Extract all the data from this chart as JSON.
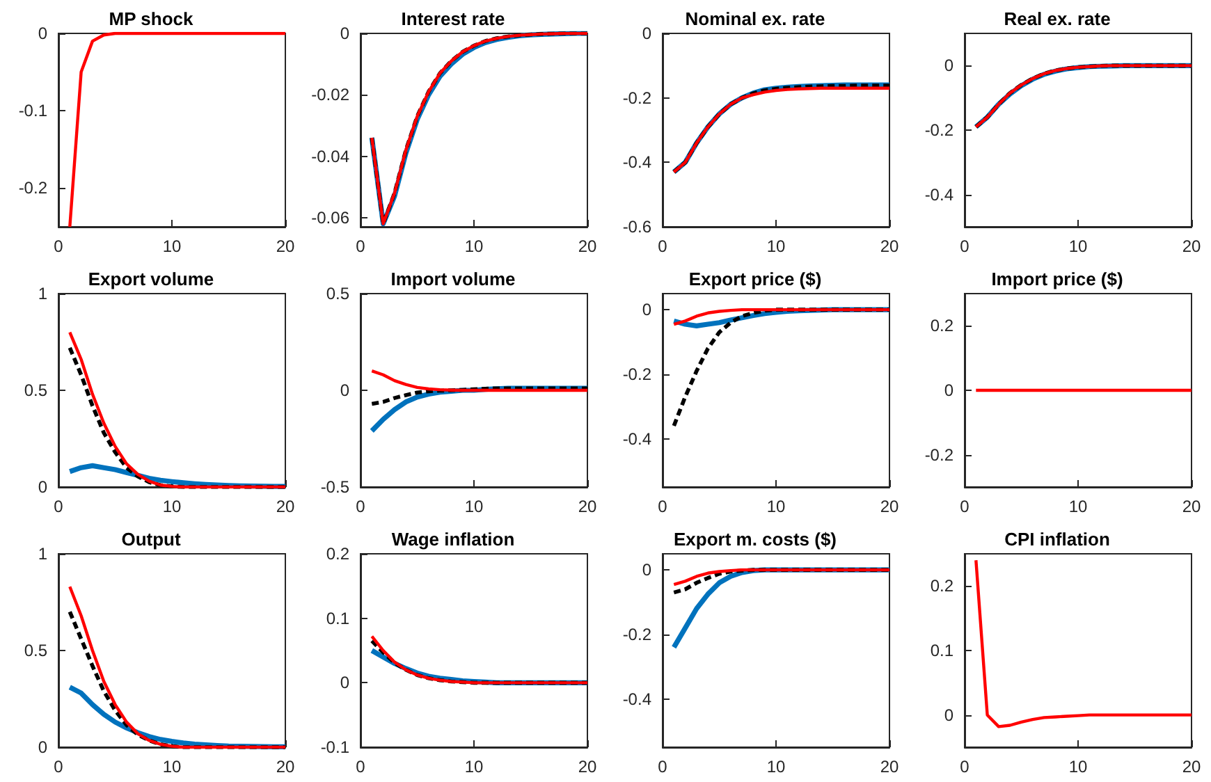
{
  "chart_data": [
    {
      "type": "line",
      "title": "MP shock",
      "x": [
        1,
        2,
        3,
        4,
        5,
        6,
        7,
        8,
        9,
        10,
        11,
        12,
        13,
        14,
        15,
        16,
        17,
        18,
        19,
        20
      ],
      "xlim": [
        0,
        20
      ],
      "xticks": [
        0,
        10,
        20
      ],
      "ylim": [
        -0.25,
        0
      ],
      "yticks": [
        -0.2,
        -0.1,
        0
      ],
      "grid": false,
      "series": [
        {
          "color": "#ff0000",
          "line_style": "solid",
          "values": [
            -0.25,
            -0.05,
            -0.01,
            -0.002,
            0,
            0,
            0,
            0,
            0,
            0,
            0,
            0,
            0,
            0,
            0,
            0,
            0,
            0,
            0,
            0
          ]
        }
      ]
    },
    {
      "type": "line",
      "title": "Interest rate",
      "x": [
        1,
        2,
        3,
        4,
        5,
        6,
        7,
        8,
        9,
        10,
        11,
        12,
        13,
        14,
        15,
        16,
        17,
        18,
        19,
        20
      ],
      "xlim": [
        0,
        20
      ],
      "xticks": [
        0,
        10,
        20
      ],
      "ylim": [
        -0.063,
        0
      ],
      "yticks": [
        -0.06,
        -0.04,
        -0.02,
        0
      ],
      "grid": false,
      "series": [
        {
          "color": "#0072bd",
          "line_style": "solid",
          "values": [
            -0.034,
            -0.062,
            -0.053,
            -0.039,
            -0.028,
            -0.02,
            -0.014,
            -0.01,
            -0.0068,
            -0.0046,
            -0.003,
            -0.002,
            -0.0013,
            -0.0008,
            -0.0005,
            -0.0003,
            -0.0002,
            -0.0001,
            0,
            0
          ]
        },
        {
          "color": "#000000",
          "line_style": "dashed",
          "values": [
            -0.034,
            -0.062,
            -0.052,
            -0.038,
            -0.027,
            -0.019,
            -0.013,
            -0.009,
            -0.006,
            -0.004,
            -0.0025,
            -0.0016,
            -0.001,
            -0.0006,
            -0.0004,
            -0.0002,
            -0.0001,
            0,
            0,
            0
          ]
        },
        {
          "color": "#ff0000",
          "line_style": "solid",
          "values": [
            -0.034,
            -0.062,
            -0.052,
            -0.038,
            -0.027,
            -0.019,
            -0.013,
            -0.009,
            -0.006,
            -0.004,
            -0.0025,
            -0.0016,
            -0.001,
            -0.0006,
            -0.0004,
            -0.0002,
            -0.0001,
            0,
            0,
            0
          ]
        }
      ]
    },
    {
      "type": "line",
      "title": "Nominal ex. rate",
      "x": [
        1,
        2,
        3,
        4,
        5,
        6,
        7,
        8,
        9,
        10,
        11,
        12,
        13,
        14,
        15,
        16,
        17,
        18,
        19,
        20
      ],
      "xlim": [
        0,
        20
      ],
      "xticks": [
        0,
        10,
        20
      ],
      "ylim": [
        -0.6,
        0
      ],
      "yticks": [
        -0.6,
        -0.4,
        -0.2,
        0
      ],
      "grid": false,
      "series": [
        {
          "color": "#0072bd",
          "line_style": "solid",
          "values": [
            -0.43,
            -0.4,
            -0.34,
            -0.29,
            -0.25,
            -0.22,
            -0.2,
            -0.185,
            -0.175,
            -0.17,
            -0.167,
            -0.165,
            -0.163,
            -0.162,
            -0.161,
            -0.16,
            -0.16,
            -0.16,
            -0.16,
            -0.16
          ]
        },
        {
          "color": "#000000",
          "line_style": "dashed",
          "values": [
            -0.43,
            -0.4,
            -0.34,
            -0.29,
            -0.25,
            -0.22,
            -0.2,
            -0.186,
            -0.177,
            -0.172,
            -0.169,
            -0.167,
            -0.165,
            -0.164,
            -0.163,
            -0.163,
            -0.162,
            -0.162,
            -0.162,
            -0.162
          ]
        },
        {
          "color": "#ff0000",
          "line_style": "solid",
          "values": [
            -0.43,
            -0.4,
            -0.34,
            -0.29,
            -0.25,
            -0.22,
            -0.2,
            -0.19,
            -0.182,
            -0.177,
            -0.174,
            -0.172,
            -0.171,
            -0.17,
            -0.17,
            -0.17,
            -0.17,
            -0.17,
            -0.17,
            -0.17
          ]
        }
      ]
    },
    {
      "type": "line",
      "title": "Real ex. rate",
      "x": [
        1,
        2,
        3,
        4,
        5,
        6,
        7,
        8,
        9,
        10,
        11,
        12,
        13,
        14,
        15,
        16,
        17,
        18,
        19,
        20
      ],
      "xlim": [
        0,
        20
      ],
      "xticks": [
        0,
        10,
        20
      ],
      "ylim": [
        -0.5,
        0.1
      ],
      "yticks": [
        -0.4,
        -0.2,
        0
      ],
      "grid": false,
      "series": [
        {
          "color": "#0072bd",
          "line_style": "solid",
          "values": [
            -0.19,
            -0.16,
            -0.12,
            -0.088,
            -0.062,
            -0.042,
            -0.027,
            -0.017,
            -0.01,
            -0.006,
            -0.003,
            -0.002,
            -0.001,
            0,
            0,
            0,
            0,
            0,
            0,
            0
          ]
        },
        {
          "color": "#000000",
          "line_style": "dashed",
          "values": [
            -0.19,
            -0.16,
            -0.12,
            -0.085,
            -0.06,
            -0.04,
            -0.025,
            -0.015,
            -0.009,
            -0.005,
            -0.003,
            -0.001,
            0,
            0,
            0,
            0,
            0,
            0,
            0,
            0
          ]
        },
        {
          "color": "#ff0000",
          "line_style": "solid",
          "values": [
            -0.19,
            -0.16,
            -0.12,
            -0.085,
            -0.06,
            -0.04,
            -0.025,
            -0.015,
            -0.009,
            -0.005,
            -0.003,
            -0.001,
            0,
            0,
            0,
            0,
            0,
            0,
            0,
            0
          ]
        }
      ]
    },
    {
      "type": "line",
      "title": "Export volume",
      "x": [
        1,
        2,
        3,
        4,
        5,
        6,
        7,
        8,
        9,
        10,
        11,
        12,
        13,
        14,
        15,
        16,
        17,
        18,
        19,
        20
      ],
      "xlim": [
        0,
        20
      ],
      "xticks": [
        0,
        10,
        20
      ],
      "ylim": [
        0,
        1
      ],
      "yticks": [
        0,
        0.5,
        1
      ],
      "grid": false,
      "series": [
        {
          "color": "#0072bd",
          "line_style": "solid",
          "values": [
            0.08,
            0.1,
            0.11,
            0.1,
            0.09,
            0.075,
            0.06,
            0.045,
            0.035,
            0.028,
            0.022,
            0.017,
            0.013,
            0.01,
            0.008,
            0.006,
            0.005,
            0.004,
            0.003,
            0.003
          ]
        },
        {
          "color": "#000000",
          "line_style": "dashed",
          "values": [
            0.72,
            0.58,
            0.42,
            0.28,
            0.18,
            0.1,
            0.055,
            0.025,
            0.01,
            0.003,
            0,
            0,
            0,
            0,
            0,
            0,
            0,
            0,
            0,
            0
          ]
        },
        {
          "color": "#ff0000",
          "line_style": "solid",
          "values": [
            0.8,
            0.66,
            0.48,
            0.33,
            0.21,
            0.12,
            0.065,
            0.03,
            0.01,
            0.003,
            0,
            0,
            0,
            0,
            0,
            0,
            0,
            0,
            0,
            0
          ]
        }
      ]
    },
    {
      "type": "line",
      "title": "Import volume",
      "x": [
        1,
        2,
        3,
        4,
        5,
        6,
        7,
        8,
        9,
        10,
        11,
        12,
        13,
        14,
        15,
        16,
        17,
        18,
        19,
        20
      ],
      "xlim": [
        0,
        20
      ],
      "xticks": [
        0,
        10,
        20
      ],
      "ylim": [
        -0.5,
        0.5
      ],
      "yticks": [
        -0.5,
        0,
        0.5
      ],
      "grid": false,
      "series": [
        {
          "color": "#0072bd",
          "line_style": "solid",
          "values": [
            -0.21,
            -0.15,
            -0.1,
            -0.06,
            -0.035,
            -0.02,
            -0.01,
            -0.005,
            0,
            0,
            0.005,
            0.008,
            0.01,
            0.01,
            0.01,
            0.01,
            0.01,
            0.01,
            0.01,
            0.01
          ]
        },
        {
          "color": "#000000",
          "line_style": "dashed",
          "values": [
            -0.07,
            -0.06,
            -0.04,
            -0.025,
            -0.012,
            -0.005,
            -0.002,
            0,
            0.002,
            0.005,
            0.008,
            0.01,
            0.01,
            0.01,
            0.01,
            0.01,
            0.01,
            0.01,
            0.01,
            0.01
          ]
        },
        {
          "color": "#ff0000",
          "line_style": "solid",
          "values": [
            0.1,
            0.08,
            0.05,
            0.03,
            0.015,
            0.007,
            0.003,
            0.001,
            0,
            0,
            0,
            0,
            0,
            0,
            0,
            0,
            0,
            0,
            0,
            0
          ]
        }
      ]
    },
    {
      "type": "line",
      "title": "Export price ($)",
      "x": [
        1,
        2,
        3,
        4,
        5,
        6,
        7,
        8,
        9,
        10,
        11,
        12,
        13,
        14,
        15,
        16,
        17,
        18,
        19,
        20
      ],
      "xlim": [
        0,
        20
      ],
      "xticks": [
        0,
        10,
        20
      ],
      "ylim": [
        -0.55,
        0.05
      ],
      "yticks": [
        -0.4,
        -0.2,
        0
      ],
      "grid": false,
      "series": [
        {
          "color": "#0072bd",
          "line_style": "solid",
          "values": [
            -0.035,
            -0.045,
            -0.05,
            -0.045,
            -0.04,
            -0.032,
            -0.025,
            -0.018,
            -0.012,
            -0.008,
            -0.005,
            -0.003,
            -0.002,
            -0.001,
            0,
            0,
            0,
            0,
            0,
            0
          ]
        },
        {
          "color": "#000000",
          "line_style": "dashed",
          "values": [
            -0.36,
            -0.27,
            -0.19,
            -0.12,
            -0.07,
            -0.04,
            -0.02,
            -0.01,
            -0.003,
            0,
            0,
            0,
            0,
            0,
            0,
            0,
            0,
            0,
            0,
            0
          ]
        },
        {
          "color": "#ff0000",
          "line_style": "solid",
          "values": [
            -0.045,
            -0.035,
            -0.02,
            -0.01,
            -0.005,
            -0.002,
            0,
            0,
            0,
            0,
            0,
            0,
            0,
            0,
            0,
            0,
            0,
            0,
            0,
            0
          ]
        }
      ]
    },
    {
      "type": "line",
      "title": "Import price ($)",
      "x": [
        1,
        2,
        3,
        4,
        5,
        6,
        7,
        8,
        9,
        10,
        11,
        12,
        13,
        14,
        15,
        16,
        17,
        18,
        19,
        20
      ],
      "xlim": [
        0,
        20
      ],
      "xticks": [
        0,
        10,
        20
      ],
      "ylim": [
        -0.3,
        0.3
      ],
      "yticks": [
        -0.2,
        0,
        0.2
      ],
      "grid": false,
      "series": [
        {
          "color": "#ff0000",
          "line_style": "solid",
          "values": [
            0,
            0,
            0,
            0,
            0,
            0,
            0,
            0,
            0,
            0,
            0,
            0,
            0,
            0,
            0,
            0,
            0,
            0,
            0,
            0
          ]
        }
      ]
    },
    {
      "type": "line",
      "title": "Output",
      "x": [
        1,
        2,
        3,
        4,
        5,
        6,
        7,
        8,
        9,
        10,
        11,
        12,
        13,
        14,
        15,
        16,
        17,
        18,
        19,
        20
      ],
      "xlim": [
        0,
        20
      ],
      "xticks": [
        0,
        10,
        20
      ],
      "ylim": [
        0,
        1
      ],
      "yticks": [
        0,
        0.5,
        1
      ],
      "grid": false,
      "series": [
        {
          "color": "#0072bd",
          "line_style": "solid",
          "values": [
            0.31,
            0.28,
            0.22,
            0.17,
            0.13,
            0.1,
            0.075,
            0.055,
            0.04,
            0.03,
            0.022,
            0.016,
            0.012,
            0.009,
            0.006,
            0.005,
            0.004,
            0.003,
            0.002,
            0.002
          ]
        },
        {
          "color": "#000000",
          "line_style": "dashed",
          "values": [
            0.7,
            0.56,
            0.42,
            0.29,
            0.19,
            0.115,
            0.065,
            0.035,
            0.015,
            0.005,
            0,
            0,
            0,
            0,
            0,
            0,
            0,
            0,
            0,
            0
          ]
        },
        {
          "color": "#ff0000",
          "line_style": "solid",
          "values": [
            0.83,
            0.68,
            0.5,
            0.34,
            0.22,
            0.13,
            0.07,
            0.035,
            0.015,
            0.005,
            0,
            0,
            0,
            0,
            0,
            0,
            0,
            0,
            0,
            0
          ]
        }
      ]
    },
    {
      "type": "line",
      "title": "Wage inflation",
      "x": [
        1,
        2,
        3,
        4,
        5,
        6,
        7,
        8,
        9,
        10,
        11,
        12,
        13,
        14,
        15,
        16,
        17,
        18,
        19,
        20
      ],
      "xlim": [
        0,
        20
      ],
      "xticks": [
        0,
        10,
        20
      ],
      "ylim": [
        -0.1,
        0.2
      ],
      "yticks": [
        -0.1,
        0,
        0.1,
        0.2
      ],
      "grid": false,
      "series": [
        {
          "color": "#0072bd",
          "line_style": "solid",
          "values": [
            0.05,
            0.04,
            0.03,
            0.022,
            0.015,
            0.01,
            0.007,
            0.005,
            0.003,
            0.002,
            0.001,
            0,
            0,
            0,
            0,
            0,
            0,
            0,
            0,
            0
          ]
        },
        {
          "color": "#000000",
          "line_style": "dashed",
          "values": [
            0.065,
            0.047,
            0.031,
            0.02,
            0.012,
            0.007,
            0.004,
            0.002,
            0.001,
            0,
            0,
            0,
            0,
            0,
            0,
            0,
            0,
            0,
            0,
            0
          ]
        },
        {
          "color": "#ff0000",
          "line_style": "solid",
          "values": [
            0.072,
            0.05,
            0.032,
            0.02,
            0.012,
            0.007,
            0.004,
            0.002,
            0.001,
            0,
            0,
            0,
            0,
            0,
            0,
            0,
            0,
            0,
            0,
            0
          ]
        }
      ]
    },
    {
      "type": "line",
      "title": "Export m. costs ($)",
      "x": [
        1,
        2,
        3,
        4,
        5,
        6,
        7,
        8,
        9,
        10,
        11,
        12,
        13,
        14,
        15,
        16,
        17,
        18,
        19,
        20
      ],
      "xlim": [
        0,
        20
      ],
      "xticks": [
        0,
        10,
        20
      ],
      "ylim": [
        -0.55,
        0.05
      ],
      "yticks": [
        -0.4,
        -0.2,
        0
      ],
      "grid": false,
      "series": [
        {
          "color": "#0072bd",
          "line_style": "solid",
          "values": [
            -0.24,
            -0.18,
            -0.12,
            -0.075,
            -0.04,
            -0.02,
            -0.008,
            -0.002,
            0,
            0,
            0,
            0,
            0,
            0,
            0,
            0,
            0,
            0,
            0,
            0
          ]
        },
        {
          "color": "#000000",
          "line_style": "dashed",
          "values": [
            -0.07,
            -0.06,
            -0.04,
            -0.025,
            -0.012,
            -0.005,
            -0.002,
            0,
            0,
            0,
            0,
            0,
            0,
            0,
            0,
            0,
            0,
            0,
            0,
            0
          ]
        },
        {
          "color": "#ff0000",
          "line_style": "solid",
          "values": [
            -0.045,
            -0.035,
            -0.02,
            -0.01,
            -0.005,
            -0.002,
            0,
            0,
            0,
            0,
            0,
            0,
            0,
            0,
            0,
            0,
            0,
            0,
            0,
            0
          ]
        }
      ]
    },
    {
      "type": "line",
      "title": "CPI inflation",
      "x": [
        1,
        2,
        3,
        4,
        5,
        6,
        7,
        8,
        9,
        10,
        11,
        12,
        13,
        14,
        15,
        16,
        17,
        18,
        19,
        20
      ],
      "xlim": [
        0,
        20
      ],
      "xticks": [
        0,
        10,
        20
      ],
      "ylim": [
        -0.05,
        0.25
      ],
      "yticks": [
        0,
        0.1,
        0.2
      ],
      "grid": false,
      "series": [
        {
          "color": "#ff0000",
          "line_style": "solid",
          "values": [
            0.24,
            0,
            -0.018,
            -0.016,
            -0.011,
            -0.007,
            -0.004,
            -0.003,
            -0.002,
            -0.001,
            0,
            0,
            0,
            0,
            0,
            0,
            0,
            0,
            0,
            0
          ]
        }
      ]
    }
  ]
}
